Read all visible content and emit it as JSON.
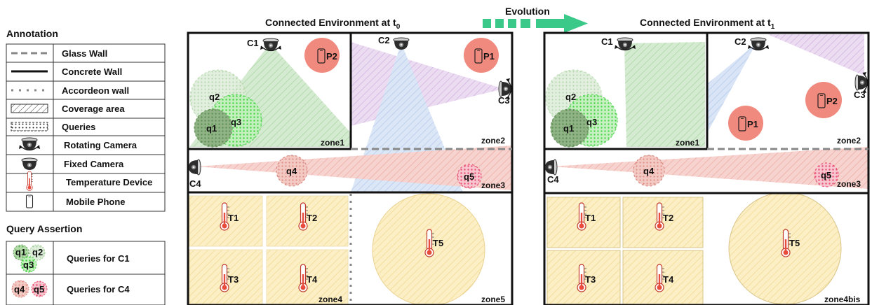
{
  "legend": {
    "annotation_title": "Annotation",
    "items": [
      {
        "icon": "glass-wall-icon",
        "label": "Glass Wall"
      },
      {
        "icon": "concrete-wall-icon",
        "label": "Concrete Wall"
      },
      {
        "icon": "accordeon-wall-icon",
        "label": "Accordeon wall"
      },
      {
        "icon": "coverage-area-icon",
        "label": "Coverage area"
      },
      {
        "icon": "queries-icon",
        "label": "Queries"
      },
      {
        "icon": "rotating-camera-icon",
        "label": "Rotating Camera"
      },
      {
        "icon": "fixed-camera-icon",
        "label": "Fixed Camera"
      },
      {
        "icon": "thermometer-icon",
        "label": "Temperature Device"
      },
      {
        "icon": "mobile-phone-icon",
        "label": "Mobile Phone"
      }
    ],
    "query_title": "Query Assertion",
    "queries": [
      {
        "ids": [
          "q1",
          "q2",
          "q3"
        ],
        "label": "Queries for C1"
      },
      {
        "ids": [
          "q4",
          "q5"
        ],
        "label": "Queries for C4"
      }
    ]
  },
  "colors": {
    "green_coverage": "#9fd39a",
    "purple_coverage": "#d8b8e6",
    "blue_coverage": "#b7cdee",
    "red_coverage": "#f2aaa2",
    "yellow_coverage": "#fbe6a8",
    "phone_circle": "#f08a7e",
    "wall": "#111111",
    "glass": "#888888",
    "evolution_arrow": "#3bc98a"
  },
  "evolution": {
    "label": "Evolution"
  },
  "t0": {
    "title": "Connected Environment at t",
    "subscript": "0",
    "cameras": {
      "c1": "C1",
      "c2": "C2",
      "c3": "C3",
      "c4": "C4"
    },
    "phones": {
      "p1": "P1",
      "p2": "P2"
    },
    "queries": {
      "q1": "q1",
      "q2": "q2",
      "q3": "q3",
      "q4": "q4",
      "q5": "q5"
    },
    "zones": {
      "zone1": "zone1",
      "zone2": "zone2",
      "zone3": "zone3",
      "zone4": "zone4",
      "zone5": "zone5"
    },
    "thermometers": {
      "t1": "T1",
      "t2": "T2",
      "t3": "T3",
      "t4": "T4",
      "t5": "T5"
    }
  },
  "t1": {
    "title": "Connected Environment at t",
    "subscript": "1",
    "cameras": {
      "c1": "C1",
      "c2": "C2",
      "c3": "C3",
      "c4": "C4"
    },
    "phones": {
      "p1": "P1",
      "p2": "P2"
    },
    "queries": {
      "q1": "q1",
      "q2": "q2",
      "q3": "q3",
      "q4": "q4",
      "q5": "q5"
    },
    "zones": {
      "zone1": "zone1",
      "zone2": "zone2",
      "zone3": "zone3",
      "zone4bis": "zone4bis"
    },
    "thermometers": {
      "t1": "T1",
      "t2": "T2",
      "t3": "T3",
      "t4": "T4",
      "t5": "T5"
    }
  }
}
